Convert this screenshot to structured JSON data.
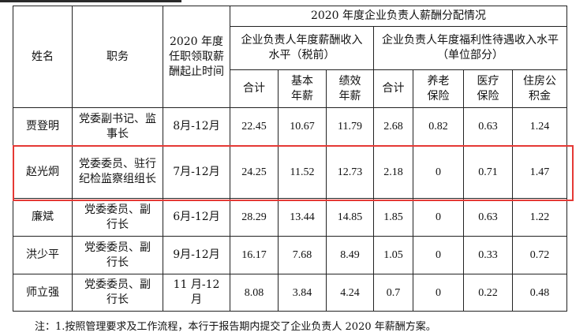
{
  "header": {
    "name": "姓名",
    "position": "职务",
    "period": "2020 年度任职领取薪酬起止时间",
    "group_title": "2020 年度企业负责人薪酬分配情况",
    "annual_pay": "企业负责人年度薪酬收入水平（税前）",
    "welfare": "企业负责人年度福利性待遇收入水平（单位部分）",
    "total": "合计",
    "base": "基本年薪",
    "perf": "绩效年薪",
    "w_total": "合计",
    "pension": "养老保险",
    "medical": "医疗保险",
    "housing": "住房公积金"
  },
  "rows": [
    {
      "name": "贾登明",
      "position": "党委副书记、监事长",
      "period": "8月-12月",
      "total": "22.45",
      "base": "10.67",
      "perf": "11.79",
      "w_total": "2.68",
      "pension": "0.82",
      "medical": "0.63",
      "housing": "1.24"
    },
    {
      "name": "赵光炯",
      "position": "党委委员、驻行纪检监察组组长",
      "period": "7月-12月",
      "total": "24.25",
      "base": "11.52",
      "perf": "12.73",
      "w_total": "2.18",
      "pension": "0",
      "medical": "0.71",
      "housing": "1.47"
    },
    {
      "name": "廉斌",
      "position": "党委委员、副行长",
      "period": "6月-12月",
      "total": "28.29",
      "base": "13.44",
      "perf": "14.85",
      "w_total": "1.85",
      "pension": "0",
      "medical": "0.63",
      "housing": "1.22"
    },
    {
      "name": "洪少平",
      "position": "党委委员、副行长",
      "period": "9月-12月",
      "total": "16.17",
      "base": "7.68",
      "perf": "8.49",
      "w_total": "1.05",
      "pension": "0",
      "medical": "0.33",
      "housing": "0.72"
    },
    {
      "name": "师立强",
      "position": "党委委员、副行长",
      "period": "11 月-12月",
      "total": "8.08",
      "base": "3.84",
      "perf": "4.24",
      "w_total": "0.7",
      "pension": "0",
      "medical": "0.22",
      "housing": "0.48"
    }
  ],
  "note": "注：1.按照管理要求及工作流程，本行于报告期内提交了企业负责人 2020 年薪酬方案。",
  "highlight_color": "#e53935"
}
